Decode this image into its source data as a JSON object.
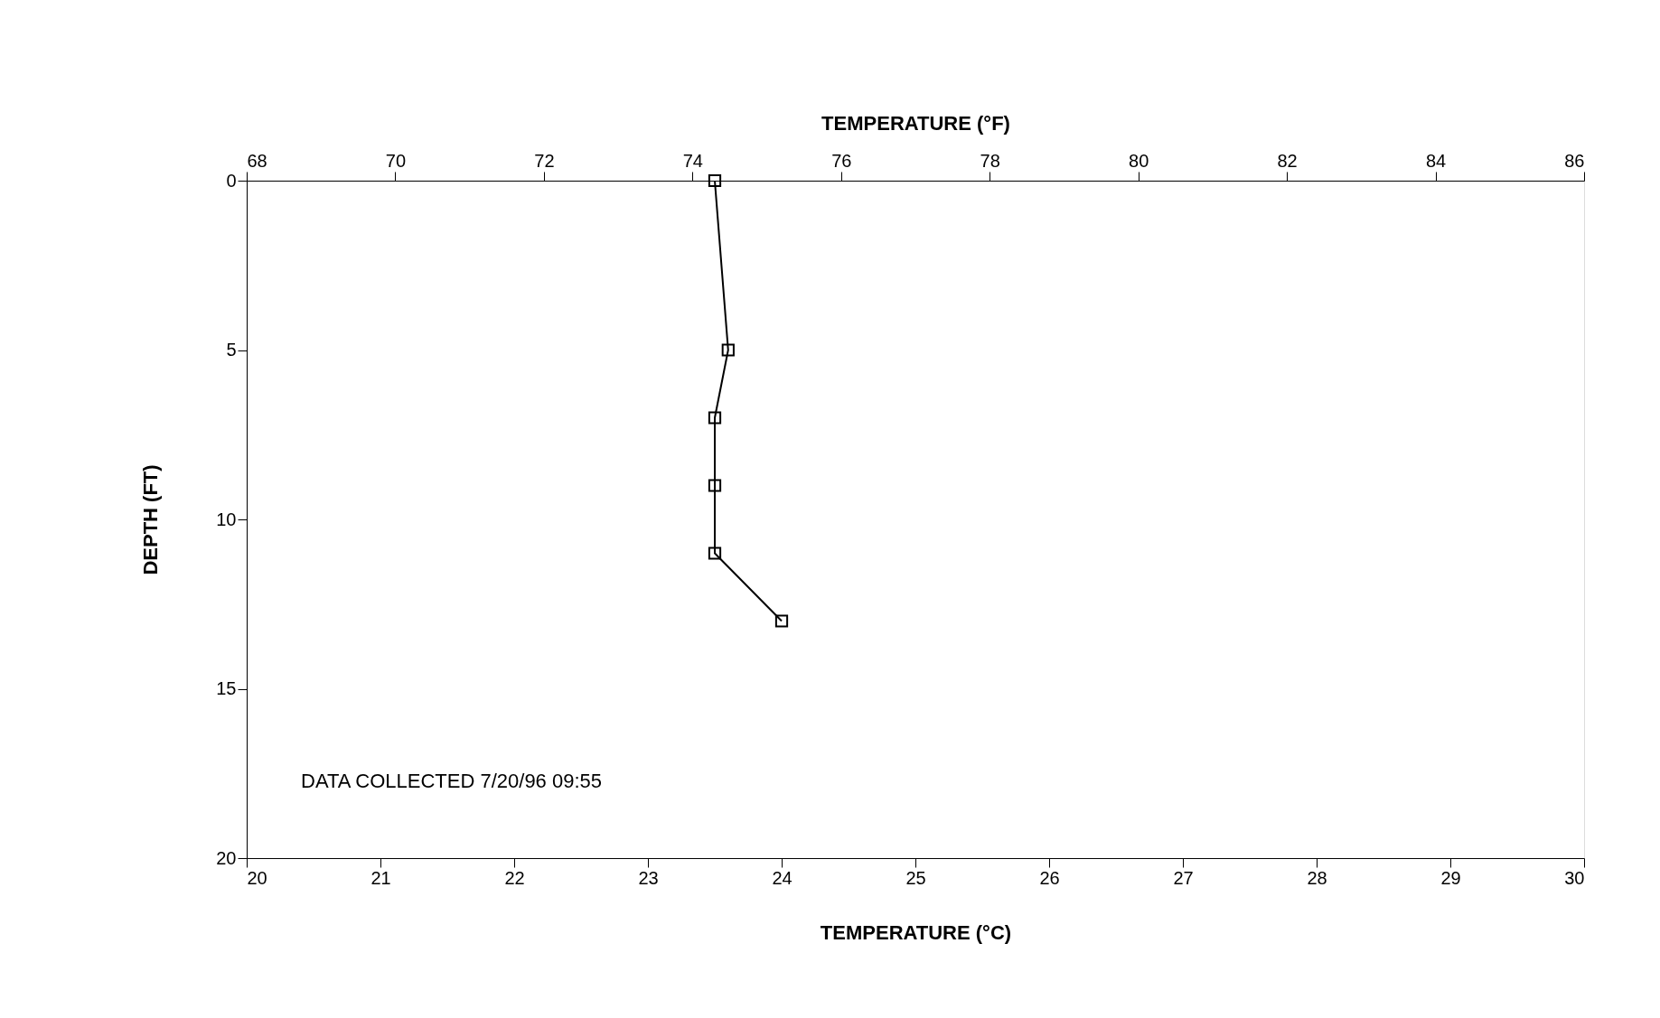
{
  "chart_data": {
    "type": "line",
    "xlabel": "TEMPERATURE (°C)",
    "x2label": "TEMPERATURE (°F)",
    "ylabel": "DEPTH (FT)",
    "series": [
      {
        "color": "#000000",
        "x": [
          23.5,
          23.6,
          23.5,
          23.5,
          23.5,
          24.0
        ],
        "values": [
          0,
          5,
          7,
          9,
          11,
          13
        ]
      }
    ],
    "xlim": [
      20,
      30
    ],
    "xticks": [
      20,
      21,
      22,
      23,
      24,
      25,
      26,
      27,
      28,
      29,
      30
    ],
    "x2lim": [
      68,
      86
    ],
    "x2ticks": [
      68,
      70,
      72,
      74,
      76,
      78,
      80,
      82,
      84,
      86
    ],
    "ylim": [
      20,
      0
    ],
    "yticks": [
      0,
      5,
      10,
      15,
      20
    ],
    "marker": "square",
    "line_style": "solid",
    "grid": false,
    "annotations": [
      "DATA COLLECTED 7/20/96  09:55"
    ]
  }
}
